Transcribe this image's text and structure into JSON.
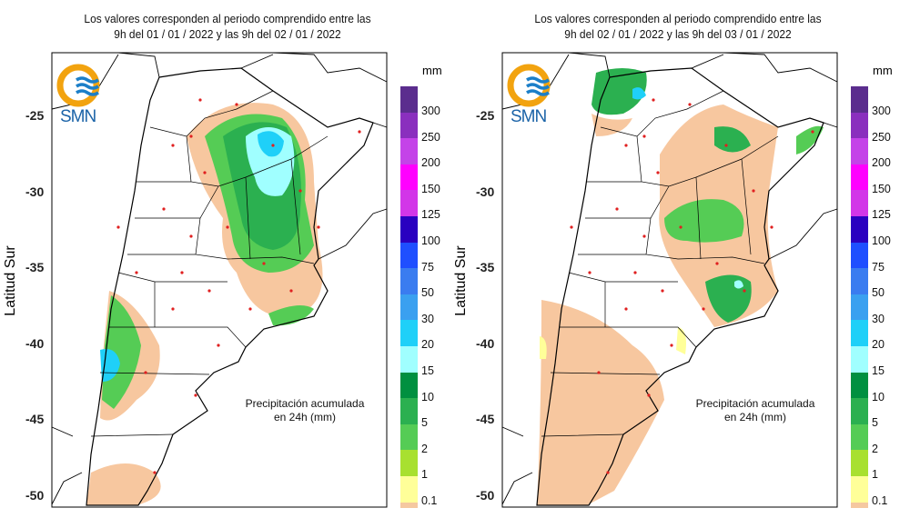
{
  "panels": [
    {
      "title_line1": "Los valores corresponden al periodo comprendido entre las",
      "title_line2": "9h del 01 / 01 / 2022  y las 9h del 02 / 01 / 2022"
    },
    {
      "title_line1": "Los valores corresponden al periodo comprendido entre las",
      "title_line2": "9h del 02 / 01 / 2022  y las 9h del 03 / 01 / 2022"
    }
  ],
  "axis": {
    "ylabel": "Latitud Sur",
    "ticks": [
      "-25",
      "-30",
      "-35",
      "-40",
      "-45",
      "-50"
    ]
  },
  "logo": {
    "text": "SMN"
  },
  "annotation": {
    "line1": "Precipitación acumulada",
    "line2": "en 24h (mm)"
  },
  "legend": {
    "unit": "mm",
    "colors": [
      "#5b2d8e",
      "#8a2fbe",
      "#c443e8",
      "#ff00ff",
      "#d236e8",
      "#2a00c0",
      "#1f4fff",
      "#3a7cf0",
      "#3aa0f0",
      "#1fd0f8",
      "#a0ffff",
      "#009040",
      "#2bb050",
      "#55cc55",
      "#a8e030",
      "#ffff99",
      "#f5c8a0"
    ],
    "labels": [
      "300",
      "250",
      "200",
      "150",
      "125",
      "100",
      "75",
      "50",
      "30",
      "20",
      "15",
      "10",
      "5",
      "2",
      "1",
      "0.1"
    ]
  },
  "colors": {
    "peach": "#f7c79f",
    "green_light": "#55cc55",
    "green_mid": "#2bb050",
    "green_dark": "#009040",
    "cyan_light": "#a0ffff",
    "cyan": "#1fd0f8",
    "blue": "#3aa0f0",
    "yellow": "#ffff99",
    "station": "#e02020"
  }
}
